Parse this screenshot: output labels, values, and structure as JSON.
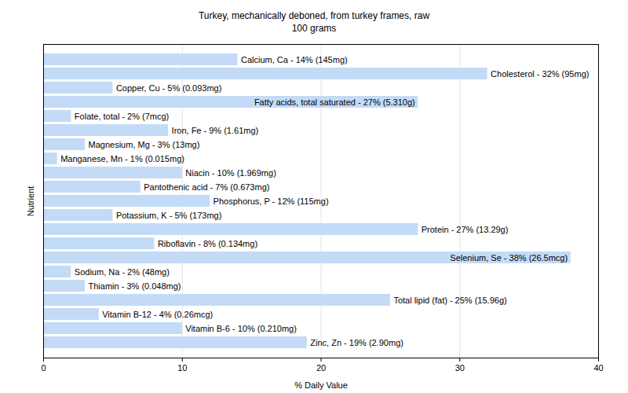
{
  "chart_data": {
    "type": "bar",
    "title": "Turkey, mechanically deboned, from turkey frames, raw",
    "subtitle": "100 grams",
    "orientation": "horizontal",
    "x_label": "% Daily Value",
    "y_label": "Nutrient",
    "categories": [
      null,
      null,
      null,
      null,
      null,
      null,
      null,
      null,
      null,
      null,
      null,
      null,
      null,
      null,
      null,
      null,
      null,
      null,
      null,
      null,
      null
    ],
    "values": [
      14,
      32,
      5,
      27,
      2,
      9,
      3,
      1,
      10,
      7,
      12,
      5,
      27,
      8,
      38,
      2,
      3,
      25,
      4,
      10,
      19
    ],
    "value_labels": [
      "Calcium, Ca - 14% (145mg)",
      "Cholesterol - 32% (95mg)",
      "Copper, Cu - 5% (0.093mg)",
      "Fatty acids, total saturated - 27% (5.310g)",
      "Folate, total - 2% (7mcg)",
      "Iron, Fe - 9% (1.61mg)",
      "Magnesium, Mg - 3% (13mg)",
      "Manganese, Mn - 1% (0.015mg)",
      "Niacin - 10% (1.969mg)",
      "Pantothenic acid - 7% (0.673mg)",
      "Phosphorus, P - 12% (115mg)",
      "Potassium, K - 5% (173mg)",
      "Protein - 27% (13.29g)",
      "Riboflavin - 8% (0.134mg)",
      "Selenium, Se - 38% (26.5mcg)",
      "Sodium, Na - 2% (48mg)",
      "Thiamin - 3% (0.048mg)",
      "Total lipid (fat) - 25% (15.96g)",
      "Vitamin B-12 - 4% (0.26mcg)",
      "Vitamin B-6 - 10% (0.210mg)",
      "Zinc, Zn - 19% (2.90mg)"
    ],
    "data_labels": true,
    "color": "#c4dbf8",
    "xlim": [
      0,
      40
    ],
    "xticks": [
      0,
      10,
      20,
      30,
      40
    ],
    "grid": true,
    "tick_labels": "x"
  }
}
